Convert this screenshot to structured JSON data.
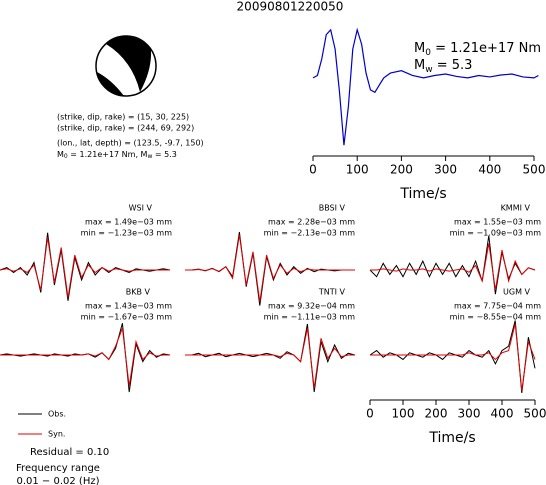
{
  "title": "20090801220050",
  "source": {
    "lines": [
      "(strike, dip, rake) = (15, 30, 225)",
      "(strike, dip, rake) = (244, 69, 292)",
      "(lon., lat, depth) = (123.5, -9.7, 150)"
    ],
    "moment": [
      "M",
      "0",
      " = 1.21e+17 Nm, M",
      "w",
      " = 5.3"
    ]
  },
  "legend": {
    "entries": [
      {
        "label": "Obs.",
        "color": "#000000"
      },
      {
        "label": "Syn.",
        "color": "#e00000"
      }
    ]
  },
  "residual": "Residual = 0.10",
  "frequency": [
    "Frequency range",
    "0.01 − 0.02 (Hz)"
  ],
  "chart_data": [
    {
      "type": "line",
      "color": "#0000cc",
      "annotations": [
        [
          "M",
          "0",
          " = 1.21e+17 Nm"
        ],
        [
          "M",
          "w",
          " = 5.3"
        ]
      ],
      "x": [
        0,
        10,
        20,
        30,
        40,
        50,
        60,
        70,
        80,
        90,
        100,
        110,
        120,
        130,
        140,
        150,
        160,
        175,
        200,
        225,
        250,
        275,
        300,
        325,
        350,
        375,
        400,
        425,
        450,
        475,
        500,
        510
      ],
      "values": [
        0,
        0.05,
        0.4,
        0.9,
        1,
        0.6,
        -0.3,
        -1.4,
        -0.6,
        0.6,
        1,
        0.7,
        0.1,
        -0.25,
        -0.3,
        -0.15,
        0,
        0.1,
        0.15,
        0.05,
        0,
        0.05,
        0.08,
        0.03,
        0,
        0.05,
        0.02,
        0.06,
        0.08,
        0.02,
        0,
        0.05
      ],
      "xlim": [
        0,
        510
      ],
      "ylim": [
        -1.5,
        1.1
      ],
      "xticks": [
        0,
        100,
        200,
        300,
        400,
        500
      ],
      "xlabel": "Time/s"
    },
    {
      "type": "line",
      "title": "WSI V",
      "annotations": [
        "max = 1.49e−03 mm",
        "min = −1.23e−03 mm"
      ],
      "x": [
        0,
        20,
        40,
        60,
        80,
        100,
        120,
        140,
        160,
        180,
        200,
        220,
        240,
        260,
        280,
        300,
        320,
        340,
        360,
        380,
        400,
        420,
        440,
        460,
        480,
        500
      ],
      "xlim": [
        0,
        510
      ],
      "ylim": [
        -0.0016,
        0.0016
      ],
      "series": [
        {
          "values": [
            0,
            0.0001,
            -0.0001,
            0.0001,
            -0.0002,
            0.0003,
            -0.0009,
            0.00149,
            -0.0006,
            0.0008,
            -0.00123,
            0.0005,
            -0.0004,
            0.0003,
            -0.0002,
            0.0001,
            -0.0001,
            0.0001,
            0,
            -0.0001,
            5e-05,
            0,
            -5e-05,
            0,
            5e-05,
            0
          ]
        },
        {
          "values": [
            0,
            5e-05,
            -5e-05,
            5e-05,
            -0.0001,
            0.0002,
            -0.0008,
            0.0013,
            -0.0005,
            0.0009,
            -0.0011,
            0.0006,
            -0.0003,
            0.0002,
            -0.0001,
            0.0001,
            -5e-05,
            5e-05,
            0,
            -5e-05,
            0,
            0,
            0,
            0,
            0,
            0
          ]
        }
      ]
    },
    {
      "type": "line",
      "title": "BBSI V",
      "annotations": [
        "max = 2.28e−03 mm",
        "min = −2.13e−03 mm"
      ],
      "x": [
        0,
        20,
        40,
        60,
        80,
        100,
        120,
        140,
        160,
        180,
        200,
        220,
        240,
        260,
        280,
        300,
        320,
        340,
        360,
        380,
        400,
        420,
        440,
        460,
        480,
        500
      ],
      "xlim": [
        0,
        510
      ],
      "ylim": [
        -0.0024,
        0.0024
      ],
      "series": [
        {
          "values": [
            0,
            0,
            5e-05,
            -5e-05,
            0.0001,
            -0.0001,
            0.0002,
            -0.0004,
            0.00228,
            -0.001,
            0.001,
            -0.00213,
            0.0008,
            -0.0006,
            0.0004,
            -0.0003,
            0.0002,
            -0.0002,
            0.0001,
            -0.0001,
            5e-05,
            0,
            -5e-05,
            0,
            0,
            0
          ]
        },
        {
          "values": [
            0,
            0,
            3e-05,
            -3e-05,
            8e-05,
            -8e-05,
            0.0002,
            -0.0005,
            0.0021,
            -0.0009,
            0.0011,
            -0.0019,
            0.0009,
            -0.0005,
            0.0003,
            -0.0002,
            0.0001,
            -0.0001,
            5e-05,
            0,
            0,
            0,
            0,
            0,
            0,
            0
          ]
        }
      ]
    },
    {
      "type": "line",
      "title": "KMMI V",
      "annotations": [
        "max = 1.55e−03 mm",
        "min = −1.09e−03 mm"
      ],
      "x": [
        0,
        20,
        40,
        60,
        80,
        100,
        120,
        140,
        160,
        180,
        200,
        220,
        240,
        260,
        280,
        300,
        320,
        340,
        360,
        380,
        400,
        420,
        440,
        460,
        480,
        500
      ],
      "xlim": [
        0,
        510
      ],
      "ylim": [
        -0.0018,
        0.0018
      ],
      "series": [
        {
          "values": [
            0,
            -0.0003,
            0.0003,
            -0.0002,
            0.0002,
            -0.0003,
            0.0003,
            -0.0002,
            0.0004,
            -0.0003,
            0.0003,
            -0.0002,
            0.0003,
            -0.0003,
            0.0002,
            -0.0003,
            0.0004,
            -0.0005,
            0.00155,
            -0.00109,
            0.0008,
            -0.0004,
            0.0003,
            -0.0002,
            0.0001,
            0
          ]
        },
        {
          "values": [
            0,
            0,
            5e-05,
            0,
            -5e-05,
            5e-05,
            0,
            0,
            5e-05,
            -5e-05,
            5e-05,
            0,
            -5e-05,
            0,
            5e-05,
            -0.0001,
            0.0002,
            -0.0005,
            0.0012,
            -0.0009,
            0.0009,
            -0.0005,
            0.0004,
            -0.0002,
            0.0001,
            0
          ]
        }
      ]
    },
    {
      "type": "line",
      "title": "BKB V",
      "annotations": [
        "max = 1.43e−03 mm",
        "min = −1.67e−03 mm"
      ],
      "x": [
        0,
        20,
        40,
        60,
        80,
        100,
        120,
        140,
        160,
        180,
        200,
        220,
        240,
        260,
        280,
        300,
        320,
        340,
        360,
        380,
        400,
        420,
        440,
        460,
        480,
        500
      ],
      "xlim": [
        0,
        510
      ],
      "ylim": [
        -0.0018,
        0.0018
      ],
      "series": [
        {
          "values": [
            0,
            5e-05,
            0,
            -5e-05,
            0,
            5e-05,
            0,
            -5e-05,
            5e-05,
            0,
            -5e-05,
            5e-05,
            0,
            5e-05,
            -0.0001,
            0.0001,
            -0.0002,
            0.0003,
            0.00143,
            -0.00167,
            0.0005,
            -0.0003,
            0.0002,
            -0.0001,
            5e-05,
            0
          ]
        },
        {
          "values": [
            0,
            0,
            0,
            0,
            0,
            0,
            0,
            0,
            0,
            0,
            0,
            0,
            0,
            5e-05,
            -5e-05,
            0.0001,
            -0.0002,
            0.0004,
            0.0012,
            -0.0014,
            0.0006,
            -0.0002,
            0.0001,
            -5e-05,
            0,
            0
          ]
        }
      ]
    },
    {
      "type": "line",
      "title": "TNTI V",
      "annotations": [
        "max = 9.32e−04 mm",
        "min = −1.11e−03 mm"
      ],
      "x": [
        0,
        20,
        40,
        60,
        80,
        100,
        120,
        140,
        160,
        180,
        200,
        220,
        240,
        260,
        280,
        300,
        320,
        340,
        360,
        380,
        400,
        420,
        440,
        460,
        480,
        500
      ],
      "xlim": [
        0,
        510
      ],
      "ylim": [
        -0.0012,
        0.0012
      ],
      "series": [
        {
          "values": [
            0,
            0,
            5e-05,
            -5e-05,
            0,
            5e-05,
            -5e-05,
            0,
            5e-05,
            0,
            -5e-05,
            0,
            5e-05,
            0,
            -0.0001,
            0.0001,
            0,
            -0.0002,
            0.000932,
            -0.00111,
            0.0004,
            -0.0002,
            0.0003,
            -0.0001,
            5e-05,
            0
          ]
        },
        {
          "values": [
            0,
            0,
            0,
            0,
            0,
            0,
            0,
            0,
            0,
            0,
            0,
            0,
            0,
            0,
            -5e-05,
            5e-05,
            0,
            -0.0002,
            0.0008,
            -0.001,
            0.0005,
            -0.0001,
            0.0002,
            -5e-05,
            0,
            0
          ]
        }
      ]
    },
    {
      "type": "line",
      "title": "UGM V",
      "annotations": [
        "max = 7.75e−04 mm",
        "min = −8.55e−04 mm"
      ],
      "x": [
        0,
        20,
        40,
        60,
        80,
        100,
        120,
        140,
        160,
        180,
        200,
        220,
        240,
        260,
        280,
        300,
        320,
        340,
        360,
        380,
        400,
        420,
        440,
        460,
        480,
        500
      ],
      "xlim": [
        0,
        510
      ],
      "ylim": [
        -0.0009,
        0.0009
      ],
      "xticks": [
        0,
        100,
        200,
        300,
        400,
        500
      ],
      "xlabel": "Time/s",
      "series": [
        {
          "values": [
            0,
            0.0001,
            -5e-05,
            5e-05,
            0,
            -0.0001,
            5e-05,
            0,
            -5e-05,
            5e-05,
            0,
            -0.0001,
            5e-05,
            0,
            -5e-05,
            0.0001,
            0,
            -5e-05,
            0.0001,
            -0.0002,
            0.0001,
            0.0002,
            0.000775,
            -0.000855,
            0.0004,
            -0.0003
          ]
        },
        {
          "values": [
            0,
            0,
            0,
            0,
            0,
            0,
            0,
            0,
            0,
            0,
            0,
            0,
            0,
            0,
            0,
            5e-05,
            0,
            0,
            5e-05,
            -0.0001,
            5e-05,
            0.0001,
            0.0007,
            -0.0008,
            0.0003,
            -0.0001
          ]
        }
      ]
    }
  ]
}
